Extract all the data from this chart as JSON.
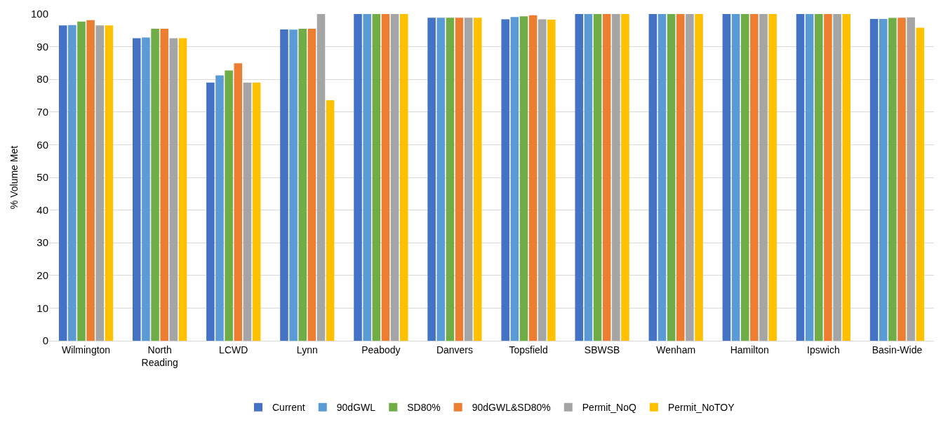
{
  "chart_data": {
    "type": "bar",
    "ylabel": "% Volume Met",
    "categories": [
      "Wilmington",
      "North\nReading",
      "LCWD",
      "Lynn",
      "Peabody",
      "Danvers",
      "Topsfield",
      "SBWSB",
      "Wenham",
      "Hamilton",
      "Ipswich",
      "Basin-Wide"
    ],
    "series": [
      {
        "name": "Current",
        "color": "#4472c4",
        "values": [
          96.5,
          92.6,
          79.0,
          95.3,
          100,
          98.9,
          98.4,
          100,
          100,
          100,
          100,
          98.5
        ]
      },
      {
        "name": "90dGWL",
        "color": "#5b9bd5",
        "values": [
          96.6,
          92.8,
          81.2,
          95.2,
          100,
          98.9,
          99.1,
          100,
          100,
          100,
          100,
          98.5
        ]
      },
      {
        "name": "SD80%",
        "color": "#70ad47",
        "values": [
          97.7,
          95.5,
          82.7,
          95.5,
          100,
          98.9,
          99.3,
          100,
          100,
          100,
          100,
          98.8
        ]
      },
      {
        "name": "90dGWL&SD80%",
        "color": "#ed7d31",
        "values": [
          98.1,
          95.5,
          84.9,
          95.5,
          100,
          98.9,
          99.6,
          100,
          100,
          100,
          100,
          98.9
        ]
      },
      {
        "name": "Permit_NoQ",
        "color": "#a5a5a5",
        "values": [
          96.5,
          92.6,
          79.0,
          100,
          100,
          98.9,
          98.4,
          100,
          100,
          100,
          100,
          99.0
        ]
      },
      {
        "name": "Permit_NoTOY",
        "color": "#ffc000",
        "values": [
          96.5,
          92.6,
          79.0,
          73.6,
          100,
          98.9,
          98.3,
          100,
          100,
          100,
          100,
          95.8
        ]
      }
    ],
    "ylim": [
      0,
      100
    ],
    "yticks": [
      0,
      10,
      20,
      30,
      40,
      50,
      60,
      70,
      80,
      90,
      100
    ],
    "grid": "y",
    "legend": "bottom"
  }
}
